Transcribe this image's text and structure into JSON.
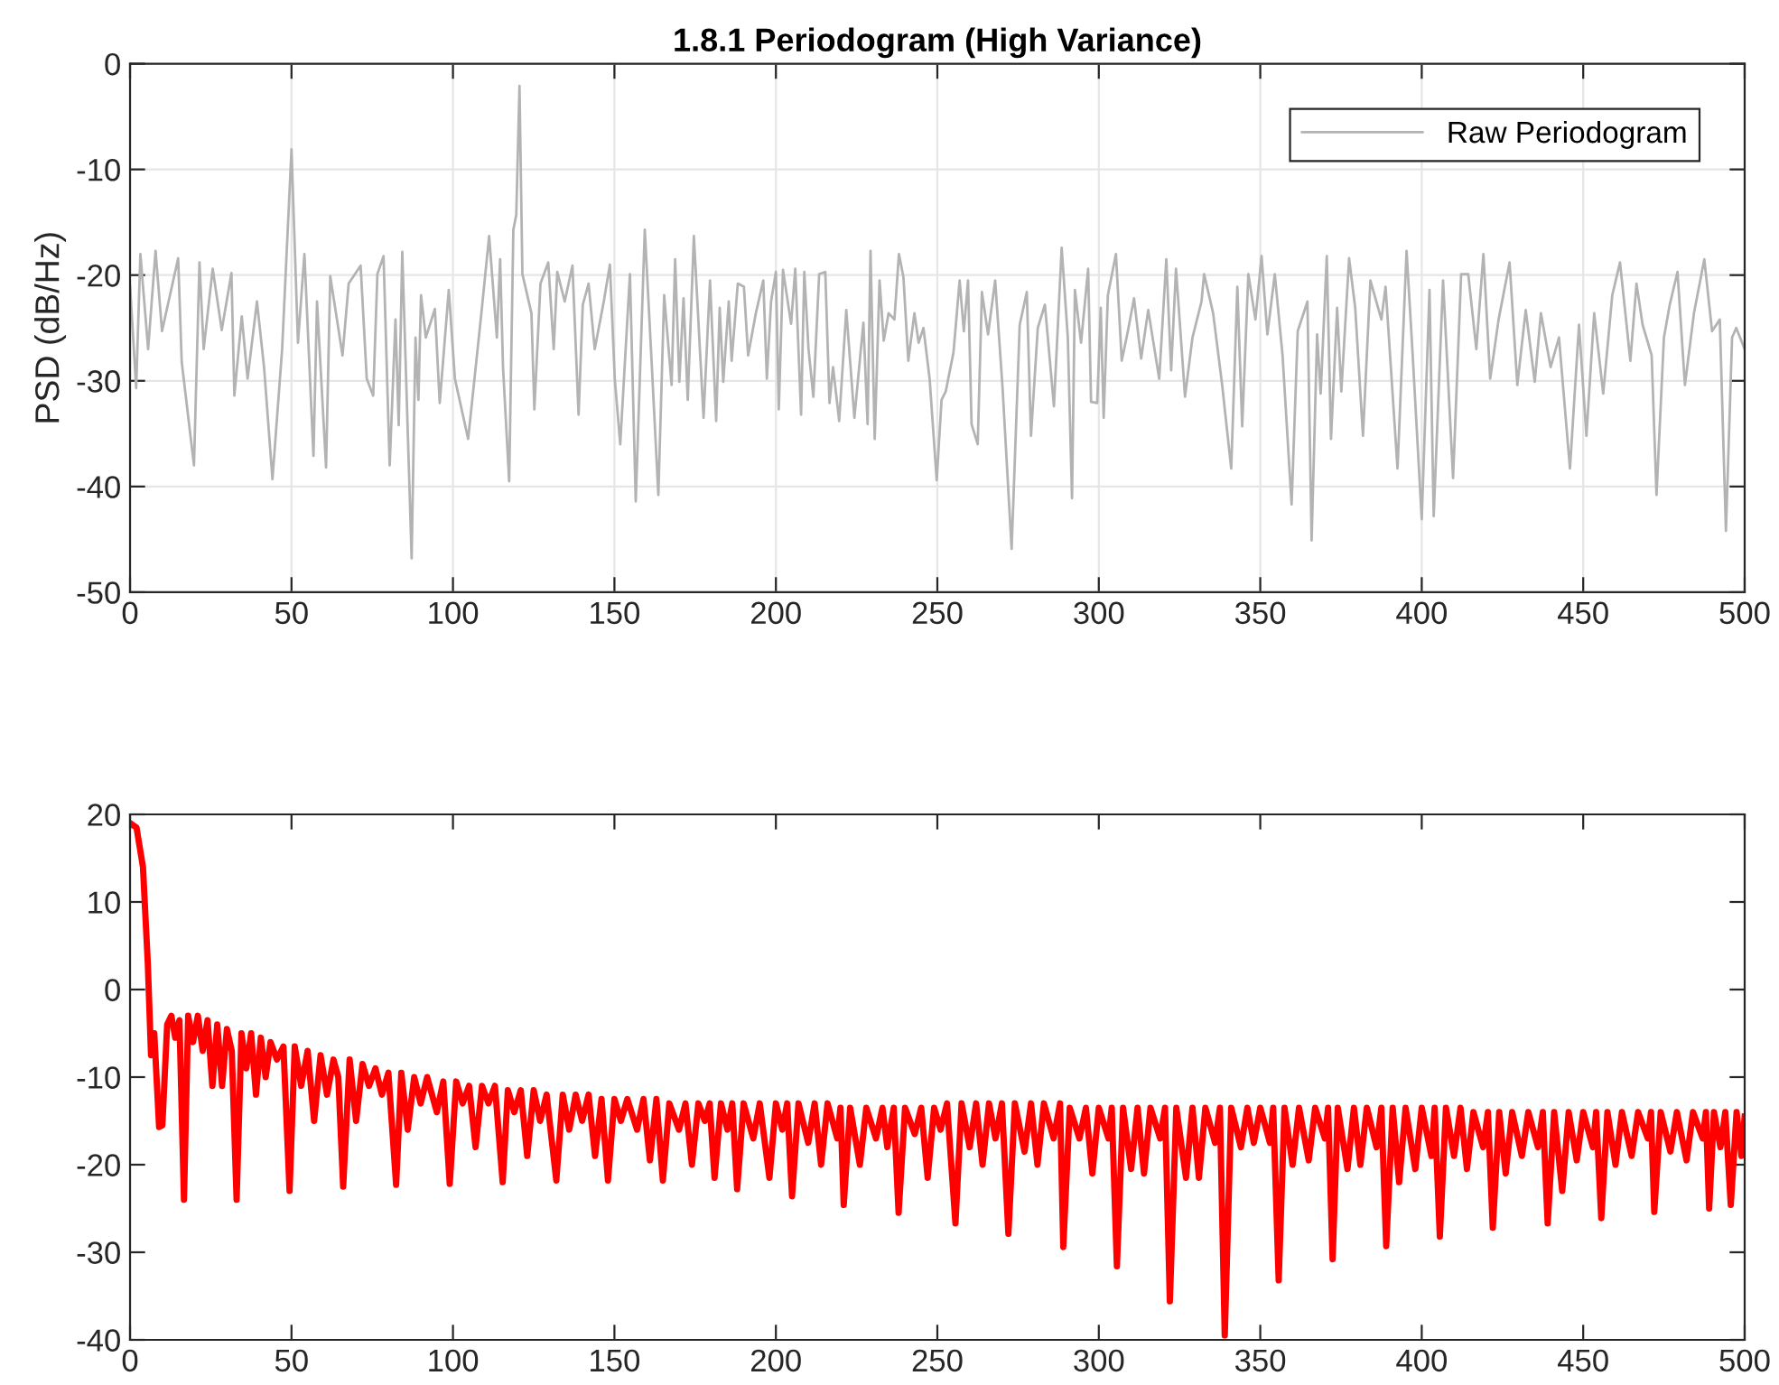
{
  "chart_data": [
    {
      "type": "line",
      "title": "1.8.1 Periodogram (High Variance)",
      "ylabel": "PSD (dB/Hz)",
      "xlim": [
        0,
        500
      ],
      "xticks": [
        0,
        50,
        100,
        150,
        200,
        250,
        300,
        350,
        400,
        450,
        500
      ],
      "ylim": [
        -50,
        0
      ],
      "yticks": [
        -50,
        -40,
        -30,
        -20,
        -10,
        0
      ],
      "grid": true,
      "legend": "top right",
      "x": [
        0,
        1.9,
        3.2,
        5.6,
        7.9,
        9.9,
        14.9,
        16,
        19.8,
        21.5,
        22.8,
        25.6,
        28.4,
        31.4,
        32.3,
        34.6,
        36.4,
        39.3,
        41.5,
        44.1,
        47.1,
        50,
        52,
        54,
        56.8,
        57.9,
        60.7,
        62,
        65.8,
        67.7,
        71.4,
        73.3,
        75.3,
        76.6,
        78.5,
        80.4,
        82.2,
        83.2,
        84.3,
        87.2,
        88.4,
        89.3,
        90.1,
        91.6,
        94.4,
        95.9,
        98.7,
        100.6,
        104.7,
        108.8,
        111.2,
        113.6,
        114.6,
        115.5,
        117.4,
        118.7,
        119.6,
        120.6,
        121.5,
        124.3,
        125.2,
        127.1,
        129.5,
        131.2,
        132.3,
        134.6,
        137,
        138.9,
        140.2,
        142,
        143.9,
        146.7,
        148.6,
        150.1,
        151.8,
        154.8,
        156.6,
        159.4,
        161.7,
        163.6,
        165.4,
        167.7,
        168.8,
        170.1,
        171.4,
        172.7,
        174.6,
        177.6,
        179.6,
        181.5,
        182.6,
        183.7,
        185.4,
        186.3,
        188.2,
        190.1,
        191.4,
        193.8,
        196.1,
        197.2,
        198.5,
        200,
        200.9,
        202.2,
        204.7,
        206,
        207.8,
        208.8,
        210.1,
        211.6,
        213.4,
        215.3,
        216.6,
        217.7,
        219.6,
        221.8,
        224.3,
        227.1,
        228.4,
        229.3,
        230.6,
        232.1,
        233.4,
        234.9,
        236.7,
        238.1,
        239.5,
        241,
        242.9,
        244.2,
        245.7,
        247.6,
        249.8,
        251.3,
        252.6,
        255,
        256.9,
        258.2,
        259.5,
        260.6,
        262.5,
        263.8,
        265.7,
        267.9,
        270.2,
        273,
        275.5,
        277.7,
        279,
        281.1,
        283.3,
        286.1,
        288.5,
        290.4,
        291.7,
        292.6,
        294.5,
        296.7,
        297.6,
        299.5,
        300.6,
        301.5,
        302.8,
        305.3,
        307.1,
        309,
        310.9,
        313.1,
        315.3,
        318.7,
        320.9,
        322.4,
        323.9,
        326.7,
        329,
        331.8,
        332.6,
        335.4,
        338.2,
        341,
        342.9,
        344.4,
        346.3,
        348.5,
        350.4,
        352.2,
        354.5,
        356.9,
        359.7,
        361.6,
        364.6,
        365.9,
        367.6,
        368.7,
        370.6,
        371.9,
        373.8,
        375.1,
        377.5,
        379.4,
        381.8,
        384.1,
        387.5,
        388.8,
        392.5,
        395.3,
        397.2,
        400,
        402.4,
        403.7,
        406.6,
        409.7,
        412.2,
        414.4,
        416.9,
        419.1,
        421.2,
        423.8,
        427.2,
        429.6,
        432.2,
        435,
        436.9,
        439.9,
        442.5,
        445.9,
        448.7,
        451,
        453.4,
        456.2,
        459,
        461.4,
        464.6,
        466.5,
        468.4,
        471.2,
        472.7,
        475,
        476.8,
        479.2,
        481.5,
        484.3,
        487.5,
        489.9,
        492.3,
        494.2,
        496.1,
        497.4,
        500
      ],
      "series": [
        {
          "name": "Raw Periodogram",
          "color": "#b3b3b3",
          "values": [
            -21,
            -30.7,
            -18,
            -27,
            -17.7,
            -25.3,
            -18.4,
            -28.2,
            -38,
            -18.8,
            -27,
            -19.4,
            -25.2,
            -19.8,
            -31.4,
            -23.9,
            -29.8,
            -22.5,
            -28.7,
            -39.3,
            -27,
            -8.1,
            -26.4,
            -18,
            -37.1,
            -22.5,
            -38.2,
            -20.1,
            -27.6,
            -20.8,
            -19.1,
            -29.8,
            -31.4,
            -19.9,
            -18.2,
            -38,
            -24.2,
            -34.2,
            -17.8,
            -46.8,
            -25.9,
            -31.8,
            -21.9,
            -25.9,
            -23.2,
            -32.1,
            -21.4,
            -29.8,
            -35.5,
            -23.6,
            -16.3,
            -25.9,
            -18.5,
            -28.7,
            -39.5,
            -15.7,
            -14.3,
            -2.1,
            -19.9,
            -23.6,
            -32.7,
            -20.8,
            -18.8,
            -27,
            -19.7,
            -22.5,
            -19.1,
            -33.2,
            -22.8,
            -20.8,
            -27,
            -22.5,
            -19,
            -29.8,
            -36,
            -19.9,
            -41.4,
            -15.7,
            -29.3,
            -40.8,
            -21.9,
            -30.4,
            -18.5,
            -30.1,
            -22.2,
            -31.8,
            -16.3,
            -33.5,
            -20.5,
            -33.8,
            -23.1,
            -30.1,
            -22.5,
            -28.1,
            -20.8,
            -21.1,
            -27.6,
            -23.6,
            -20.5,
            -29.8,
            -22.5,
            -19.7,
            -32.7,
            -19.5,
            -24.6,
            -19.4,
            -33.2,
            -19.7,
            -27,
            -31.5,
            -19.9,
            -19.7,
            -32.1,
            -28.7,
            -33.8,
            -23.3,
            -33.5,
            -24.5,
            -34.1,
            -17.7,
            -35.5,
            -20.5,
            -26.2,
            -23.6,
            -24.2,
            -18,
            -20.2,
            -28.1,
            -23.6,
            -26.4,
            -25,
            -29.8,
            -39.4,
            -31.8,
            -31,
            -27.3,
            -20.5,
            -25.3,
            -20.5,
            -34.1,
            -36,
            -21.6,
            -25.6,
            -20.5,
            -30.7,
            -45.9,
            -24.7,
            -21.6,
            -35.2,
            -25,
            -22.8,
            -32.4,
            -17.4,
            -25.9,
            -41.1,
            -21.4,
            -26.4,
            -19.4,
            -32,
            -32.1,
            -23.1,
            -33.5,
            -21.9,
            -18,
            -28.1,
            -25.3,
            -22.2,
            -27.9,
            -23.3,
            -29.8,
            -18.5,
            -29,
            -19.4,
            -31.5,
            -25.9,
            -22.5,
            -19.9,
            -23.6,
            -30.4,
            -38.3,
            -21.1,
            -34.3,
            -19.9,
            -24.2,
            -18.2,
            -25.6,
            -19.9,
            -27.6,
            -41.7,
            -25.3,
            -22.5,
            -45.1,
            -25.6,
            -31.2,
            -18.2,
            -35.5,
            -23.1,
            -31,
            -18.4,
            -23.1,
            -35.2,
            -20.5,
            -24.2,
            -21.1,
            -38.3,
            -17.7,
            -27.6,
            -43.1,
            -21.4,
            -42.8,
            -20.5,
            -39.2,
            -19.9,
            -19.9,
            -27,
            -18,
            -29.8,
            -24.2,
            -18.8,
            -30.4,
            -23.3,
            -30.1,
            -23.6,
            -28.7,
            -25.9,
            -38.3,
            -24.7,
            -35.2,
            -23.6,
            -31.2,
            -21.9,
            -18.8,
            -28.1,
            -20.8,
            -24.7,
            -27.6,
            -40.8,
            -25.9,
            -22.8,
            -19.7,
            -30.4,
            -23.6,
            -18.5,
            -25.3,
            -24.2,
            -44.2,
            -25.9,
            -25,
            -27
          ]
        }
      ]
    },
    {
      "type": "line",
      "xlim": [
        0,
        500
      ],
      "xticks": [
        0,
        50,
        100,
        150,
        200,
        250,
        300,
        350,
        400,
        450,
        500
      ],
      "ylim": [
        -40,
        20
      ],
      "yticks": [
        -40,
        -30,
        -20,
        -10,
        0,
        10,
        20
      ],
      "x": [
        0,
        2,
        4,
        5.5,
        6.5,
        7.5,
        9,
        10,
        11.5,
        12.8,
        14,
        15.3,
        16.7,
        18,
        19.5,
        21,
        22.5,
        24,
        25.5,
        27,
        28.5,
        30,
        31.5,
        33,
        34.5,
        36,
        37.5,
        39,
        40.5,
        42,
        43.5,
        45.5,
        47.5,
        49.4,
        51,
        53,
        55,
        57,
        59,
        61,
        63,
        64.5,
        66,
        68,
        70,
        72,
        74,
        76,
        78,
        80,
        82.4,
        84,
        86,
        88,
        90,
        92,
        95,
        97,
        99,
        101,
        103,
        105,
        107,
        109,
        111,
        113,
        115.4,
        117,
        119,
        121,
        123,
        125,
        127,
        129,
        132,
        134,
        136,
        138,
        140,
        142,
        144,
        146,
        148,
        150,
        152,
        154,
        157,
        159,
        161,
        163,
        165,
        167,
        170,
        172,
        174,
        176,
        178,
        179.5,
        181,
        183,
        185,
        186.5,
        188,
        190,
        193,
        195,
        198,
        200,
        202,
        203.5,
        205,
        207,
        210,
        212,
        214,
        216,
        219,
        220,
        221,
        223,
        226,
        228,
        231,
        233,
        234.5,
        236.5,
        238,
        240,
        243,
        245,
        247,
        249,
        251,
        253,
        255.6,
        257.5,
        260,
        262,
        264,
        266,
        268,
        270,
        272,
        274,
        277,
        279,
        281,
        283,
        286,
        288,
        289,
        291,
        294,
        296,
        298,
        300,
        303,
        304,
        305.6,
        307.5,
        310,
        312,
        314,
        316,
        319,
        320.5,
        322,
        324,
        327,
        329,
        331,
        333,
        336,
        337.5,
        339,
        341,
        344,
        346,
        348,
        350,
        353,
        354,
        355.7,
        357.5,
        360,
        362,
        365,
        367,
        370,
        371,
        372.4,
        374,
        377,
        379,
        381,
        383,
        386,
        387.5,
        389,
        391,
        393,
        395,
        398,
        400,
        403,
        404,
        405.6,
        407.5,
        410,
        412,
        414,
        416,
        419,
        420.5,
        422,
        424,
        426,
        428,
        431,
        433,
        436,
        437.5,
        439,
        441,
        443.5,
        445.5,
        448,
        450,
        453,
        454,
        455.6,
        457.5,
        460,
        462,
        465,
        467,
        470,
        471,
        472,
        474,
        477,
        479,
        482,
        484,
        487,
        488,
        489,
        490.5,
        492.5,
        494,
        495.7,
        497.5,
        499,
        500
      ],
      "series": [
        {
          "color": "#ff0000",
          "values": [
            19,
            18.5,
            14,
            3,
            -7.5,
            -5,
            -15.7,
            -15.5,
            -4,
            -3,
            -5.5,
            -3.5,
            -24,
            -3,
            -6,
            -3,
            -7,
            -3.5,
            -11,
            -4,
            -11,
            -4.5,
            -7,
            -24,
            -5,
            -9,
            -5,
            -12,
            -5.5,
            -10,
            -6,
            -8,
            -6.5,
            -23,
            -6.5,
            -11,
            -7,
            -15,
            -7.5,
            -12,
            -8,
            -10,
            -22.5,
            -8,
            -15,
            -8.5,
            -11,
            -9,
            -12,
            -9.5,
            -22.3,
            -9.5,
            -16,
            -10,
            -13,
            -10,
            -14,
            -10.5,
            -22.2,
            -10.5,
            -13,
            -11,
            -18,
            -11,
            -13,
            -11,
            -22,
            -11.5,
            -14,
            -11.5,
            -19,
            -11.5,
            -15,
            -12,
            -21.8,
            -12,
            -16,
            -12,
            -15,
            -12,
            -19,
            -12.5,
            -21.8,
            -12.5,
            -15,
            -12.5,
            -16,
            -12.5,
            -19.5,
            -12.5,
            -21.8,
            -13,
            -16,
            -13,
            -20,
            -13,
            -15,
            -13,
            -21.5,
            -13,
            -16,
            -13,
            -22.8,
            -13,
            -17,
            -13,
            -21.5,
            -13,
            -16,
            -13,
            -23.6,
            -13,
            -17.5,
            -13,
            -20,
            -13,
            -17,
            -13.5,
            -24.6,
            -13.5,
            -20,
            -13.5,
            -17,
            -13.5,
            -18,
            -13.5,
            -25.5,
            -13.5,
            -16.5,
            -13.5,
            -21.5,
            -13.5,
            -16,
            -13,
            -26.7,
            -13,
            -18,
            -13,
            -20,
            -13,
            -17,
            -13,
            -27.9,
            -13,
            -18.5,
            -13,
            -20,
            -13,
            -17,
            -13,
            -29.4,
            -13.5,
            -17,
            -13.5,
            -21,
            -13.5,
            -17,
            -13.5,
            -31.6,
            -13.5,
            -20.5,
            -13.5,
            -21,
            -13.5,
            -17,
            -13.5,
            -35.6,
            -13.5,
            -21.5,
            -13.5,
            -21.5,
            -13.5,
            -17.5,
            -13.5,
            -39.5,
            -13.5,
            -18,
            -13.5,
            -17.5,
            -13.5,
            -17.5,
            -13.5,
            -33.2,
            -13.5,
            -20,
            -13.5,
            -19.5,
            -13.5,
            -17,
            -13.5,
            -30.8,
            -13.5,
            -20.5,
            -13.5,
            -20,
            -13.5,
            -18,
            -13.5,
            -29.3,
            -13.5,
            -22,
            -13.5,
            -20.5,
            -13.5,
            -19,
            -13.5,
            -28.2,
            -13.5,
            -19,
            -13.5,
            -20.5,
            -14,
            -18,
            -14,
            -27.2,
            -14,
            -21,
            -14,
            -19,
            -14,
            -18,
            -14,
            -26.7,
            -14,
            -23,
            -14,
            -19.5,
            -14,
            -18,
            -14,
            -26.1,
            -14,
            -20,
            -14,
            -19,
            -14,
            -17,
            -14,
            -25.4,
            -14,
            -18.5,
            -14,
            -19.5,
            -14,
            -17,
            -14,
            -25,
            -14,
            -18,
            -14,
            -24.6,
            -14,
            -19,
            -14.5
          ]
        }
      ]
    }
  ]
}
